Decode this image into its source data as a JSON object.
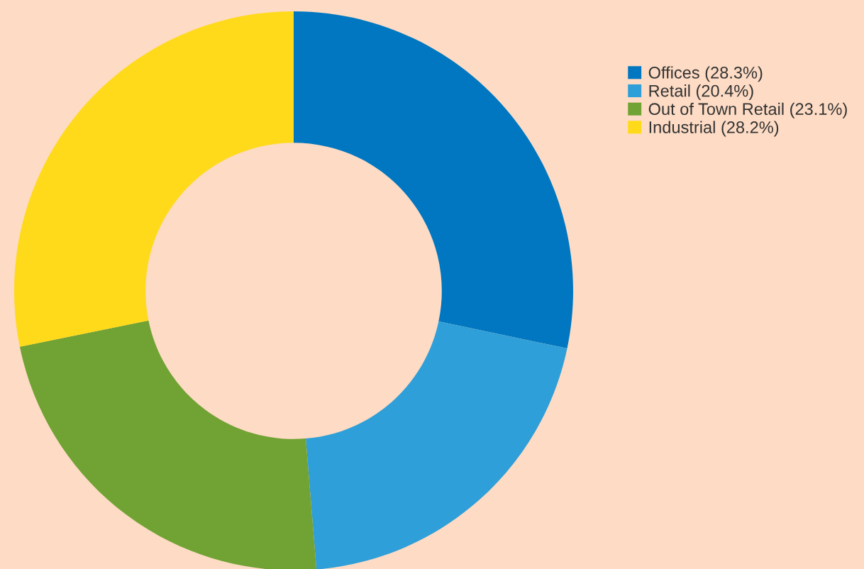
{
  "chart_data": {
    "type": "donut",
    "categories": [
      "Offices (28.3%)",
      "Retail (20.4%)",
      "Out of Town Retail (23.1%)",
      "Industrial (28.2%)"
    ],
    "values": [
      28.3,
      20.4,
      23.1,
      28.2
    ],
    "colors": [
      "#0077c0",
      "#2e9fd8",
      "#71a234",
      "#ffda1a"
    ],
    "legend": "top right"
  }
}
